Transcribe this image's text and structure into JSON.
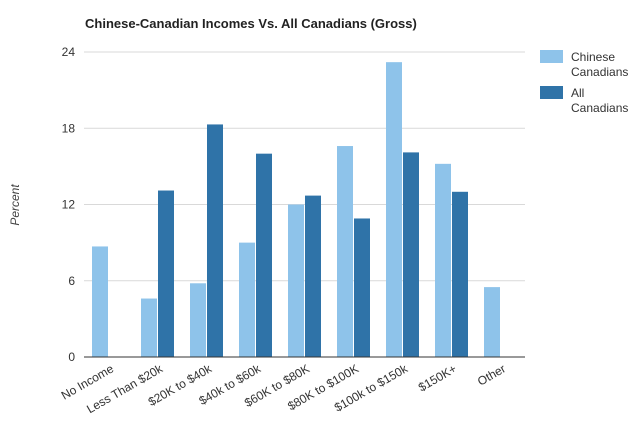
{
  "chart_data": {
    "type": "bar",
    "title": "Chinese-Canadian Incomes Vs. All Canadians (Gross)",
    "xlabel": "",
    "ylabel": "Percent",
    "ylim": [
      0,
      24
    ],
    "yticks": [
      0,
      6,
      12,
      18,
      24
    ],
    "grid": true,
    "legend_position": "right",
    "categories": [
      "No Income",
      "Less Than $20k",
      "$20K to $40k",
      "$40k to $60k",
      "$60K to $80K",
      "$80K to $100K",
      "$100k to $150k",
      "$150K+",
      "Other"
    ],
    "series": [
      {
        "name": "Chinese Canadians",
        "legend_lines": [
          "Chinese",
          "Canadians"
        ],
        "color": "#8ec3ea",
        "values": [
          8.7,
          4.6,
          5.8,
          9.0,
          12.0,
          16.6,
          23.2,
          15.2,
          5.5
        ]
      },
      {
        "name": "All Canadians",
        "legend_lines": [
          "All",
          "Canadians"
        ],
        "color": "#2f73a8",
        "values": [
          null,
          13.1,
          18.3,
          16.0,
          12.7,
          10.9,
          16.1,
          13.0,
          null
        ]
      }
    ]
  }
}
